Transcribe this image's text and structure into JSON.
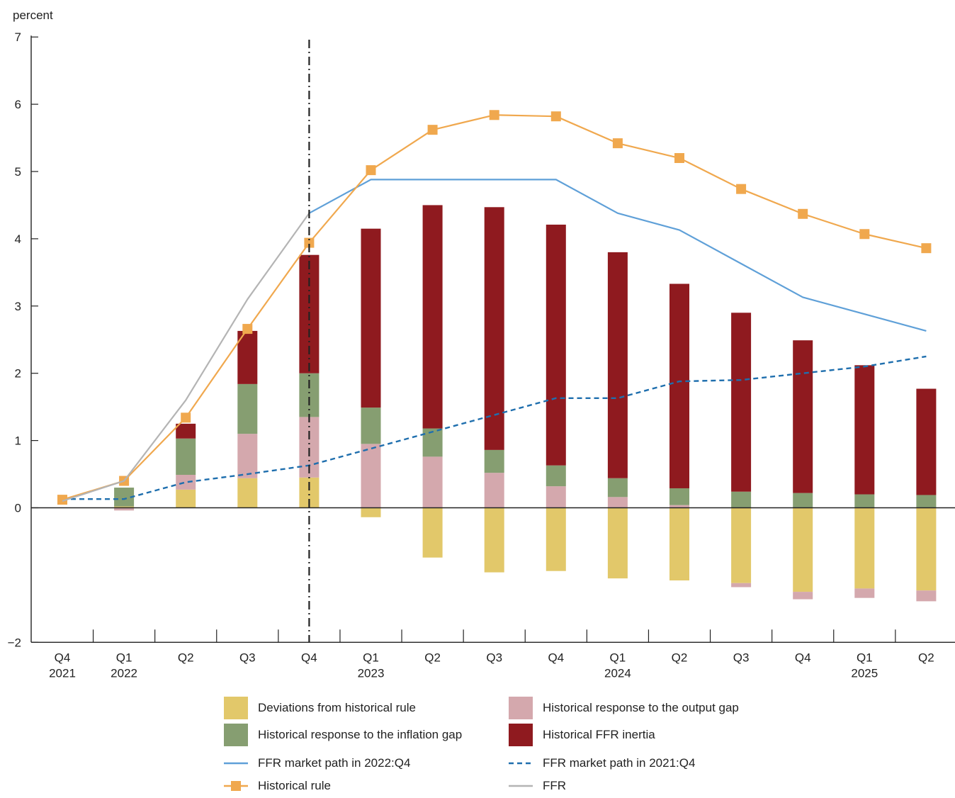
{
  "chart_data": {
    "type": "bar",
    "ylabel": "percent",
    "ylim": [
      -2,
      7
    ],
    "yticks": [
      "−2",
      "0",
      "1",
      "2",
      "3",
      "4",
      "5",
      "6",
      "7"
    ],
    "yticks_values": [
      -2,
      0,
      1,
      2,
      3,
      4,
      5,
      6,
      7
    ],
    "categories": [
      "Q4\n2021",
      "Q1\n2022",
      "Q2",
      "Q3",
      "Q4",
      "Q1\n2023",
      "Q2",
      "Q3",
      "Q4",
      "Q1\n2024",
      "Q2",
      "Q3",
      "Q4",
      "Q1\n2025",
      "Q2"
    ],
    "category_quarters": [
      "Q4",
      "Q1",
      "Q2",
      "Q3",
      "Q4",
      "Q1",
      "Q2",
      "Q3",
      "Q4",
      "Q1",
      "Q2",
      "Q3",
      "Q4",
      "Q1",
      "Q2"
    ],
    "category_years": [
      "2021",
      "2022",
      "",
      "",
      "",
      "2023",
      "",
      "",
      "",
      "2024",
      "",
      "",
      "",
      "2025",
      ""
    ],
    "vertical_marker_category": "Q4 2022",
    "stacked_series": [
      {
        "name": "Deviations from historical rule",
        "color": "#e2c86a",
        "values": [
          0.0,
          0.02,
          0.27,
          0.44,
          0.45,
          -0.14,
          -0.74,
          -0.96,
          -0.94,
          -1.05,
          -1.08,
          -1.12,
          -1.25,
          -1.2,
          -1.23
        ]
      },
      {
        "name": "Historical response to the output gap",
        "color": "#d4a8ad",
        "values": [
          0.0,
          -0.04,
          0.22,
          0.66,
          0.9,
          0.95,
          0.76,
          0.52,
          0.32,
          0.16,
          0.04,
          -0.06,
          -0.11,
          -0.14,
          -0.16
        ]
      },
      {
        "name": "Historical response to the inflation gap",
        "color": "#869e71",
        "values": [
          0.0,
          0.28,
          0.54,
          0.74,
          0.65,
          0.54,
          0.42,
          0.34,
          0.31,
          0.28,
          0.25,
          0.24,
          0.22,
          0.2,
          0.19
        ]
      },
      {
        "name": "Historical FFR inertia",
        "color": "#8f1a1f",
        "values": [
          0.0,
          0.0,
          0.22,
          0.79,
          1.76,
          2.66,
          3.32,
          3.61,
          3.58,
          3.36,
          3.04,
          2.66,
          2.27,
          1.92,
          1.58
        ]
      }
    ],
    "line_series": [
      {
        "name": "FFR market path in 2022:Q4",
        "color": "#5fa0d8",
        "style": "solid",
        "values": [
          null,
          null,
          null,
          null,
          4.38,
          4.88,
          4.88,
          4.88,
          4.88,
          4.38,
          4.13,
          3.63,
          3.13,
          2.88,
          2.63
        ]
      },
      {
        "name": "FFR market path in 2021:Q4",
        "color": "#1f6fae",
        "style": "dashed",
        "values": [
          0.13,
          0.13,
          0.38,
          0.5,
          0.63,
          0.88,
          1.13,
          1.38,
          1.63,
          1.63,
          1.88,
          1.9,
          2.0,
          2.1,
          2.25
        ]
      },
      {
        "name": "Historical rule",
        "color": "#f0a84e",
        "style": "solid-square-markers",
        "values": [
          0.12,
          0.4,
          1.34,
          2.66,
          3.94,
          5.02,
          5.62,
          5.84,
          5.82,
          5.42,
          5.2,
          4.74,
          4.37,
          4.07,
          3.86
        ]
      },
      {
        "name": "FFR",
        "color": "#b4b4b4",
        "style": "solid",
        "values": [
          0.1,
          0.4,
          1.6,
          3.1,
          4.38,
          null,
          null,
          null,
          null,
          null,
          null,
          null,
          null,
          null,
          null
        ]
      }
    ],
    "legend_placement": "bottom",
    "grid": false
  },
  "legend": {
    "items": [
      {
        "label": "Deviations from historical rule",
        "kind": "swatch",
        "color": "#e2c86a"
      },
      {
        "label": "Historical response to the output gap",
        "kind": "swatch",
        "color": "#d4a8ad"
      },
      {
        "label": "Historical response to the inflation gap",
        "kind": "swatch",
        "color": "#869e71"
      },
      {
        "label": "Historical FFR inertia",
        "kind": "swatch",
        "color": "#8f1a1f"
      },
      {
        "label": "FFR market path in 2022:Q4",
        "kind": "line",
        "color": "#5fa0d8"
      },
      {
        "label": "FFR market path in 2021:Q4",
        "kind": "dashed",
        "color": "#1f6fae"
      },
      {
        "label": "Historical rule",
        "kind": "marker-line",
        "color": "#f0a84e"
      },
      {
        "label": "FFR",
        "kind": "line",
        "color": "#b4b4b4"
      }
    ]
  }
}
